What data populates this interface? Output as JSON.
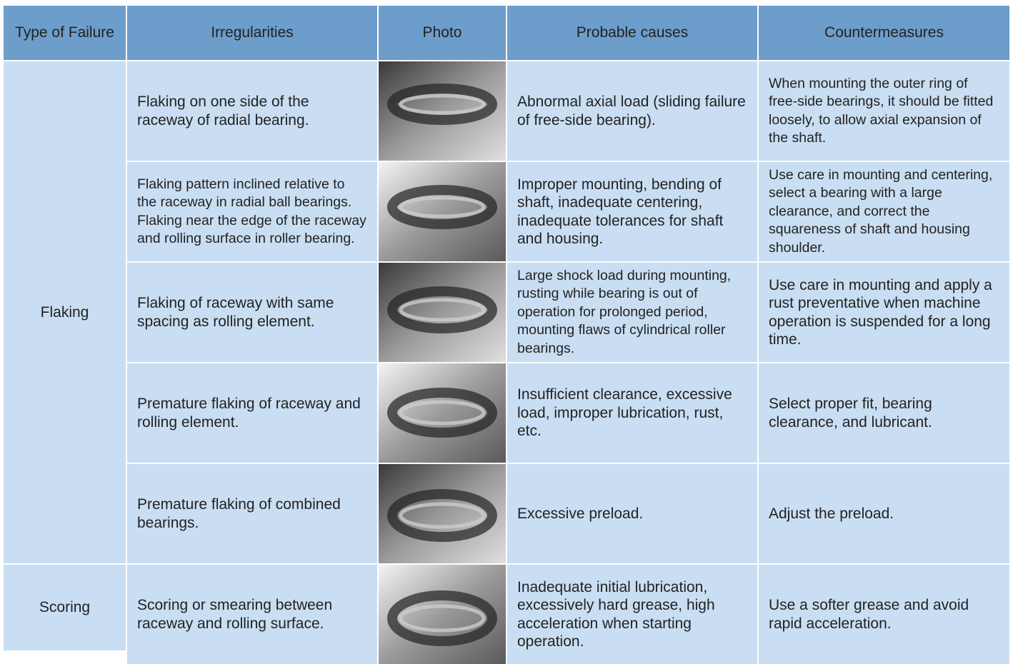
{
  "table": {
    "header": [
      "Type of Failure",
      "Irregularities",
      "Photo",
      "Probable causes",
      "Countermeasures"
    ],
    "groups": [
      {
        "failure": "Flaking",
        "rows": [
          {
            "irregularity": "Flaking on one side of the raceway of radial bearing.",
            "causes": "Abnormal axial load (sliding failure of free-side bearing).",
            "countermeasures": "When mounting the outer ring of free-side bearings, it should be fitted loosely, to allow axial expansion of the shaft."
          },
          {
            "irregularity": "Flaking pattern inclined relative to the raceway in radial ball bearings. Flaking near the edge of the raceway and rolling surface in roller bearing.",
            "causes": "Improper mounting, bending of shaft, inadequate centering, inadequate tolerances for shaft and housing.",
            "countermeasures": "Use care in mounting and centering, select a bearing with a large clearance, and correct the squareness of shaft and housing shoulder."
          },
          {
            "irregularity": "Flaking of raceway with same spacing as rolling element.",
            "causes": "Large shock load during mounting, rusting while bearing is out of operation for prolonged period, mounting flaws of cylindrical roller bearings.",
            "countermeasures": "Use care in mounting and apply a rust preventative when machine operation is suspended for a long time."
          },
          {
            "irregularity": "Premature flaking of raceway and rolling element.",
            "causes": "Insufficient clearance, excessive load, improper lubrication, rust, etc.",
            "countermeasures": "Select proper fit, bearing clearance, and lubricant."
          },
          {
            "irregularity": "Premature flaking of combined bearings.",
            "causes": "Excessive preload.",
            "countermeasures": "Adjust the preload."
          }
        ]
      },
      {
        "failure": "Scoring",
        "rows": [
          {
            "irregularity": "Scoring or smearing between raceway and rolling surface.",
            "causes": "Inadequate initial lubrication, excessively hard grease, high acceleration when starting operation.",
            "countermeasures": "Use a softer grease and avoid rapid acceleration."
          }
        ]
      }
    ]
  }
}
